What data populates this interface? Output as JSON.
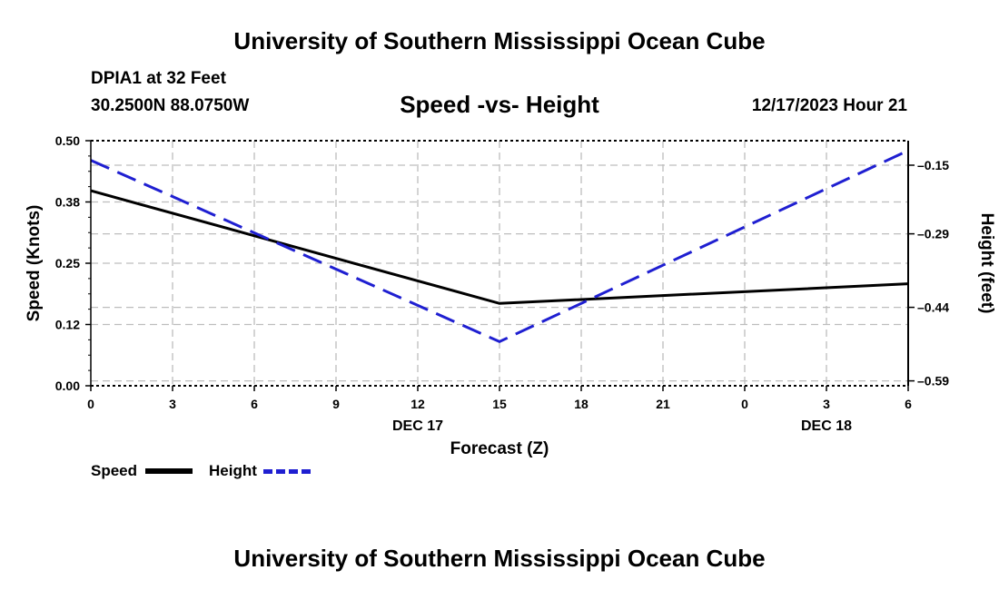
{
  "header": {
    "title": "University of Southern Mississippi Ocean Cube",
    "station": "DPIA1 at 32 Feet",
    "coords": "30.2500N  88.0750W",
    "subtitle": "Speed -vs- Height",
    "datetime": "12/17/2023 Hour 21"
  },
  "footer": {
    "title": "University of Southern Mississippi Ocean Cube"
  },
  "legend": {
    "speed_label": "Speed",
    "height_label": "Height"
  },
  "chart_data": {
    "type": "line",
    "title": "Speed -vs- Height",
    "xlabel": "Forecast (Z)",
    "ylabel": "Speed (Knots)",
    "y2label": "Height (feet)",
    "x_hours": [
      0,
      3,
      6,
      9,
      12,
      15,
      18,
      21,
      24,
      27,
      30
    ],
    "x_tick_labels": [
      "0",
      "3",
      "6",
      "9",
      "12",
      "15",
      "18",
      "21",
      "0",
      "3",
      "6"
    ],
    "date_labels": [
      {
        "label": "DEC 17",
        "hour": 12
      },
      {
        "label": "DEC 18",
        "hour": 27
      }
    ],
    "xlim": [
      0,
      30
    ],
    "ylim": [
      0,
      0.5
    ],
    "y_tick_values": [
      0,
      0.125,
      0.25,
      0.375,
      0.5
    ],
    "y_tick_labels": [
      "0.00",
      "0.12",
      "0.25",
      "0.38",
      "0.50"
    ],
    "y2lim": [
      -0.6,
      -0.1
    ],
    "y2_tick_values": [
      -0.59,
      -0.44,
      -0.29,
      -0.15
    ],
    "y2_tick_labels": [
      "-0.59",
      "-0.44",
      "-0.29",
      "-0.15"
    ],
    "grid": true,
    "series": [
      {
        "name": "Speed",
        "axis": "left",
        "color": "#000000",
        "dash": "solid",
        "x": [
          0,
          15,
          30
        ],
        "values": [
          0.398,
          0.168,
          0.208
        ]
      },
      {
        "name": "Height",
        "axis": "right",
        "color": "#1f1fd1",
        "dash": "dashed",
        "x": [
          0,
          15,
          30
        ],
        "values": [
          -0.14,
          -0.51,
          -0.12
        ]
      }
    ],
    "legend_position": "bottom-left"
  }
}
